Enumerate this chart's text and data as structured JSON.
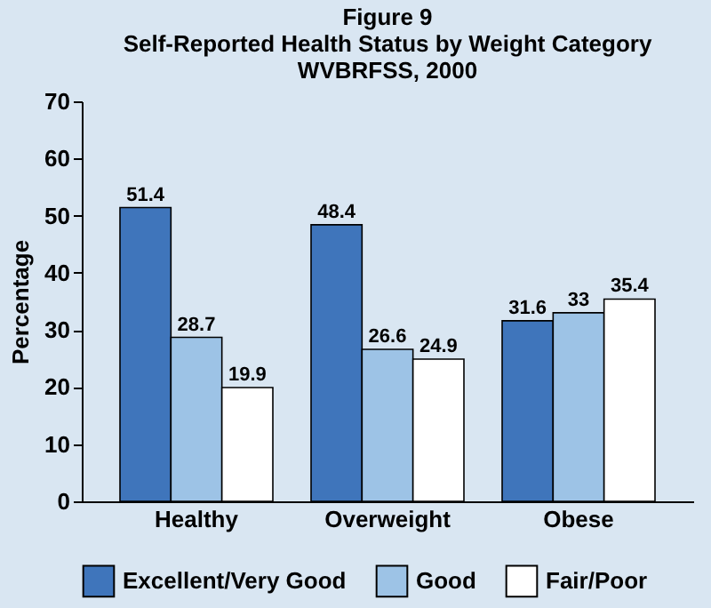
{
  "chart_data": {
    "type": "bar",
    "title": "Figure 9\nSelf-Reported Health Status by Weight Category\nWVBRFSS, 2000",
    "ylabel": "Percentage",
    "categories": [
      "Healthy",
      "Overweight",
      "Obese"
    ],
    "series": [
      {
        "name": "Excellent/Very Good",
        "color": "#3f75bb",
        "values": [
          51.4,
          48.4,
          31.6
        ]
      },
      {
        "name": "Good",
        "color": "#9dc3e6",
        "values": [
          28.7,
          26.6,
          33
        ]
      },
      {
        "name": "Fair/Poor",
        "color": "#ffffff",
        "values": [
          19.9,
          24.9,
          35.4
        ]
      }
    ],
    "ylim": [
      0,
      70
    ],
    "yticks": [
      0,
      10,
      20,
      30,
      40,
      50,
      60,
      70
    ],
    "grid": false,
    "legend": "bottom",
    "data_labels": true
  }
}
